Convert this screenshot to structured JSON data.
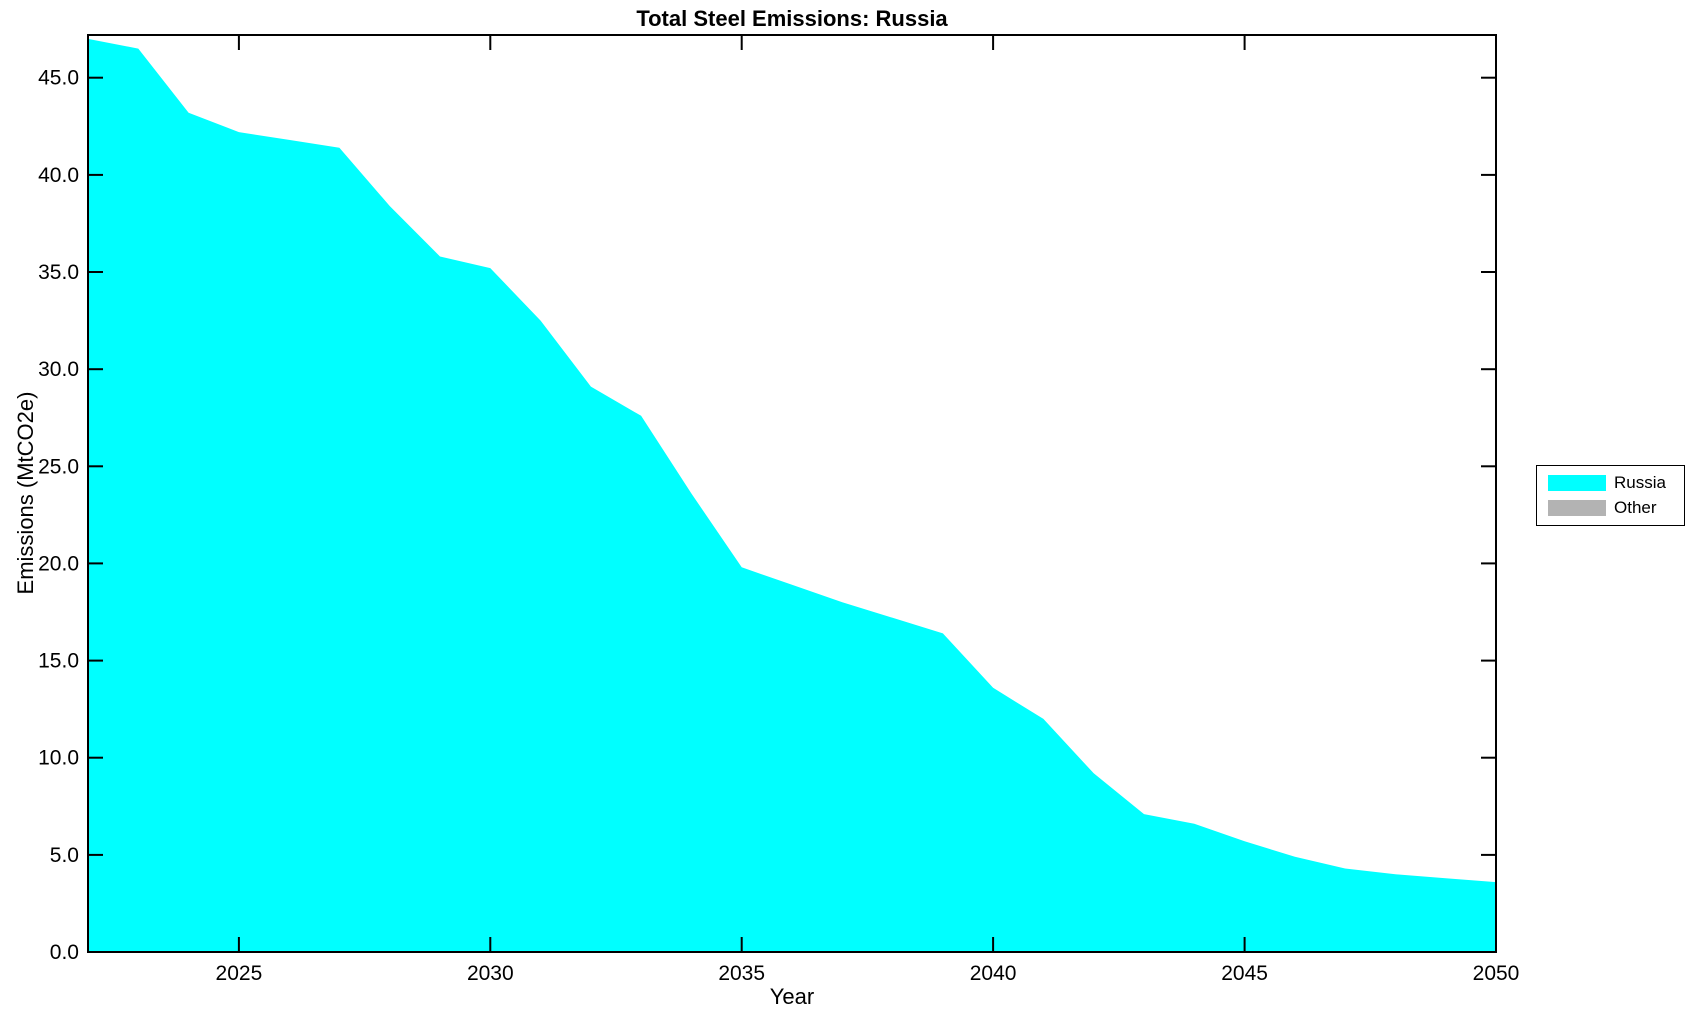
{
  "chart_data": {
    "type": "area",
    "title": "Total Steel Emissions: Russia",
    "xlabel": "Year",
    "ylabel": "Emissions (MtCO2e)",
    "x": [
      2022,
      2023,
      2024,
      2025,
      2026,
      2027,
      2028,
      2029,
      2030,
      2031,
      2032,
      2033,
      2034,
      2035,
      2036,
      2037,
      2038,
      2039,
      2040,
      2041,
      2042,
      2043,
      2044,
      2045,
      2046,
      2047,
      2048,
      2049,
      2050
    ],
    "series": [
      {
        "name": "Russia",
        "color": "#00ffff",
        "values": [
          47.0,
          46.5,
          43.2,
          42.2,
          41.8,
          41.4,
          38.4,
          35.8,
          35.2,
          32.5,
          29.1,
          27.6,
          23.6,
          19.8,
          18.9,
          18.0,
          17.2,
          16.4,
          13.6,
          12.0,
          9.2,
          7.1,
          6.6,
          5.7,
          4.9,
          4.3,
          4.0,
          3.8,
          3.6
        ]
      }
    ],
    "legend": [
      {
        "label": "Russia",
        "color": "#00ffff"
      },
      {
        "label": "Other",
        "color": "#b3b3b3"
      }
    ],
    "legend_position": "right-outside",
    "xlim": [
      2022,
      2050
    ],
    "ylim": [
      0,
      47.2
    ],
    "xticks": [
      2025,
      2030,
      2035,
      2040,
      2045,
      2050
    ],
    "yticks": [
      0,
      5,
      10,
      15,
      20,
      25,
      30,
      35,
      40,
      45
    ],
    "ytick_decimals": 1,
    "grid": false,
    "axis_color": "#000000",
    "background": "#ffffff"
  }
}
